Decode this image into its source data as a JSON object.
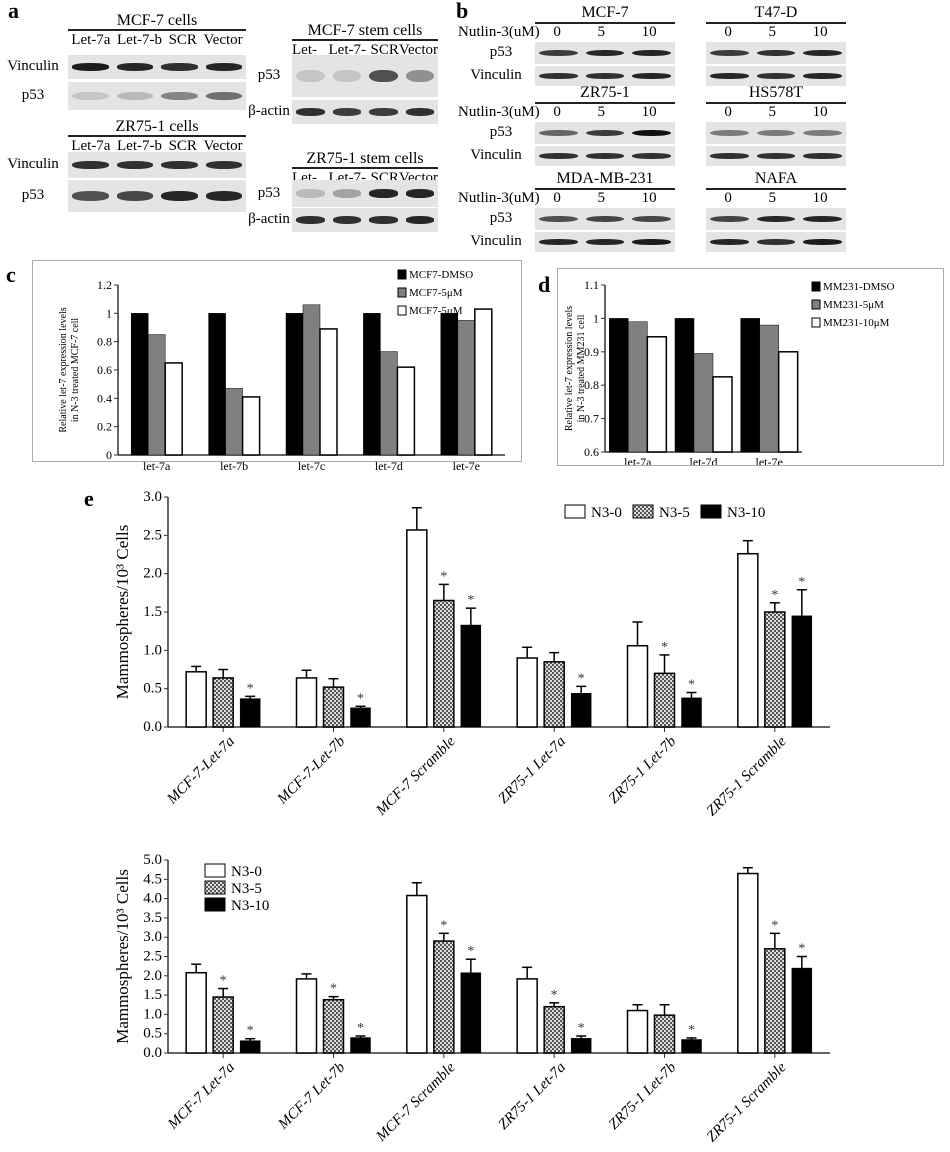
{
  "panel_labels": {
    "a": "a",
    "b": "b",
    "c": "c",
    "d": "d",
    "e": "e"
  },
  "panel_a": {
    "lanes": [
      "Let-7a",
      "Let-7-b",
      "SCR",
      "Vector"
    ],
    "blots": [
      {
        "title": "MCF-7 cells",
        "rows": [
          "Vinculin",
          "p53"
        ]
      },
      {
        "title": "ZR75-1  cells",
        "rows": [
          "Vinculin",
          "p53"
        ]
      },
      {
        "title": "MCF-7 stem cells",
        "rows": [
          "p53",
          "β-actin"
        ]
      },
      {
        "title": "ZR75-1  stem cells",
        "rows": [
          "p53",
          "β-actin"
        ]
      }
    ]
  },
  "panel_b": {
    "treatment_label": "Nutlin-3(uM)",
    "doses": [
      "0",
      "5",
      "10"
    ],
    "rows": [
      "p53",
      "Vinculin"
    ],
    "cell_lines": [
      "MCF-7",
      "T47-D",
      "ZR75-1",
      "HS578T",
      "MDA-MB-231",
      "NAFA"
    ]
  },
  "chart_data": [
    {
      "id": "c",
      "type": "bar",
      "ylabel": "Relative let-7 expression levels in N-3 treated MCF-7 cell",
      "xlabel": "",
      "categories": [
        "let-7a",
        "let-7b",
        "let-7c",
        "let-7d",
        "let-7e"
      ],
      "ylim": [
        0,
        1.2
      ],
      "yticks": [
        "0",
        "0.2",
        "0.4",
        "0.6",
        "0.8",
        "1",
        "1.2"
      ],
      "legend": "top-right",
      "series": [
        {
          "name": "MCF7-DMSO",
          "color": "#000000",
          "values": [
            1,
            1,
            1,
            1,
            1
          ]
        },
        {
          "name": "MCF7-5μM",
          "color": "#808080",
          "values": [
            0.85,
            0.47,
            1.06,
            0.73,
            0.95
          ]
        },
        {
          "name": "MCF7-5μM",
          "color": "#ffffff",
          "values": [
            0.65,
            0.41,
            0.89,
            0.62,
            1.03
          ]
        }
      ]
    },
    {
      "id": "d",
      "type": "bar",
      "ylabel": "Relative let-7 expression levels in N-3 treated MM231 cell",
      "xlabel": "",
      "categories": [
        "let-7a",
        "let-7d",
        "let-7e"
      ],
      "ylim": [
        0.6,
        1.1
      ],
      "yticks": [
        "0.6",
        "0.7",
        "0.8",
        "0.9",
        "1",
        "1.1"
      ],
      "legend": "top-right",
      "series": [
        {
          "name": "MM231-DMSO",
          "color": "#000000",
          "values": [
            1,
            1,
            1
          ]
        },
        {
          "name": "MM231-5μM",
          "color": "#808080",
          "values": [
            0.99,
            0.895,
            0.98
          ]
        },
        {
          "name": "MM231-10μM",
          "color": "#ffffff",
          "values": [
            0.945,
            0.825,
            0.9
          ]
        }
      ]
    },
    {
      "id": "e1",
      "type": "bar",
      "ylabel": "Mammospheres/10³ Cells",
      "xlabel": "",
      "categories": [
        "MCF-7-Let-7a",
        "MCF-7-Let-7b",
        "MCF-7 Scramble",
        "ZR75-1 Let-7a",
        "ZR75-1 Let-7b",
        "ZR75-1 Scramble"
      ],
      "ylim": [
        0,
        3
      ],
      "yticks": [
        "0.0",
        "0.5",
        "1.0",
        "1.5",
        "2.0",
        "2.5",
        "3.0"
      ],
      "legend": "top-right",
      "significance_mark": "*",
      "series": [
        {
          "name": "N3-0",
          "color": "#ffffff",
          "values": [
            0.72,
            0.64,
            2.57,
            0.9,
            1.06,
            2.26
          ],
          "errors": [
            0.07,
            0.1,
            0.29,
            0.14,
            0.31,
            0.17
          ],
          "significant": [
            false,
            false,
            false,
            false,
            false,
            false
          ]
        },
        {
          "name": "N3-5",
          "color": "#999999",
          "pattern": "checkered",
          "values": [
            0.64,
            0.52,
            1.65,
            0.85,
            0.7,
            1.5
          ],
          "errors": [
            0.11,
            0.11,
            0.21,
            0.12,
            0.24,
            0.12
          ],
          "significant": [
            false,
            false,
            true,
            false,
            true,
            true
          ]
        },
        {
          "name": "N3-10",
          "color": "#000000",
          "values": [
            0.37,
            0.25,
            1.33,
            0.44,
            0.38,
            1.45
          ],
          "errors": [
            0.03,
            0.02,
            0.22,
            0.09,
            0.07,
            0.34
          ],
          "significant": [
            true,
            true,
            true,
            true,
            true,
            true
          ]
        }
      ]
    },
    {
      "id": "e2",
      "type": "bar",
      "ylabel": "Mammospheres/10³ Cells",
      "xlabel": "",
      "categories": [
        "MCF-7 Let-7a",
        "MCF-7 Let-7b",
        "MCF-7 Scramble",
        "ZR75-1 Let-7a",
        "ZR75-1 Let-7b",
        "ZR75-1 Scramble"
      ],
      "ylim": [
        0,
        5
      ],
      "yticks": [
        "0.0",
        "0.5",
        "1.0",
        "1.5",
        "2.0",
        "2.5",
        "3.0",
        "3.5",
        "4.0",
        "4.5",
        "5.0"
      ],
      "legend": "top-left",
      "significance_mark": "*",
      "series": [
        {
          "name": "N3-0",
          "color": "#ffffff",
          "values": [
            2.08,
            1.92,
            4.08,
            1.92,
            1.1,
            4.65
          ],
          "errors": [
            0.22,
            0.13,
            0.33,
            0.3,
            0.15,
            0.15
          ],
          "significant": [
            false,
            false,
            false,
            false,
            false,
            false
          ]
        },
        {
          "name": "N3-5",
          "color": "#999999",
          "pattern": "checkered",
          "values": [
            1.45,
            1.38,
            2.9,
            1.2,
            0.98,
            2.7
          ],
          "errors": [
            0.22,
            0.08,
            0.2,
            0.1,
            0.27,
            0.4
          ],
          "significant": [
            true,
            true,
            true,
            true,
            false,
            true
          ]
        },
        {
          "name": "N3-10",
          "color": "#000000",
          "values": [
            0.32,
            0.4,
            2.08,
            0.38,
            0.35,
            2.2
          ],
          "errors": [
            0.05,
            0.04,
            0.35,
            0.06,
            0.04,
            0.3
          ],
          "significant": [
            true,
            true,
            true,
            true,
            true,
            true
          ]
        }
      ]
    }
  ]
}
